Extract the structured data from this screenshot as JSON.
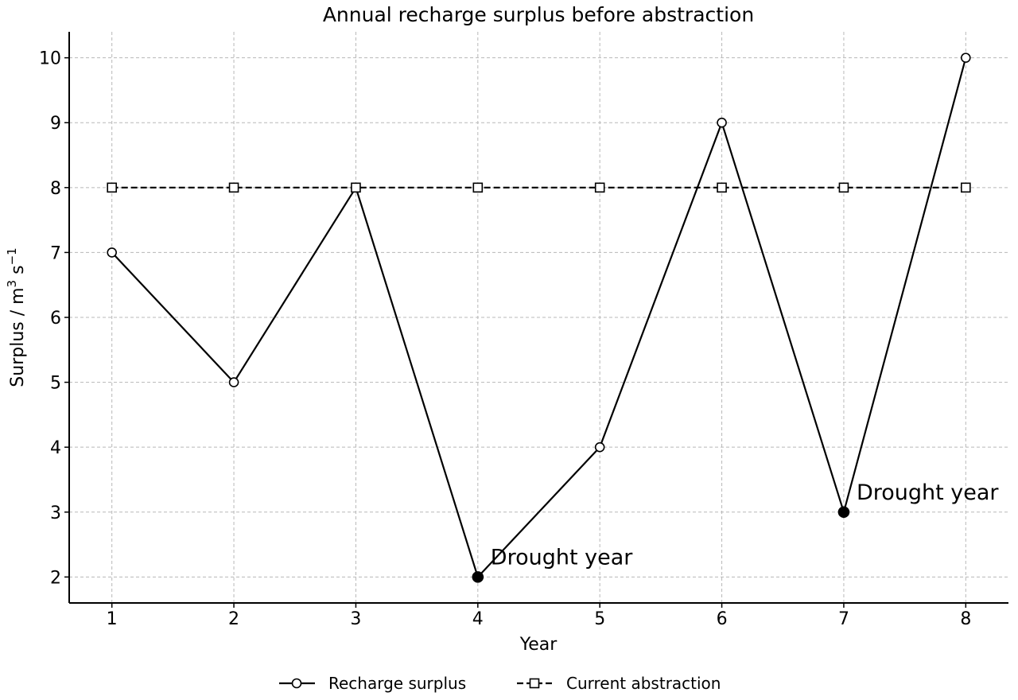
{
  "chart_data": {
    "type": "line",
    "title": "Annual recharge surplus before abstraction",
    "xlabel": "Year",
    "ylabel": "Surplus / m³ s⁻¹",
    "x": [
      1,
      2,
      3,
      4,
      5,
      6,
      7,
      8
    ],
    "xlim": [
      0.65,
      8.35
    ],
    "ylim": [
      1.6,
      10.4
    ],
    "xticks": [
      1,
      2,
      3,
      4,
      5,
      6,
      7,
      8
    ],
    "yticks": [
      2,
      3,
      4,
      5,
      6,
      7,
      8,
      9,
      10
    ],
    "grid": true,
    "legend_position": "bottom-center",
    "series": [
      {
        "name": "Recharge surplus",
        "values": [
          7,
          5,
          8,
          2,
          4,
          9,
          3,
          10
        ],
        "marker": "circle",
        "line_style": "solid",
        "color": "#000000",
        "highlight_x": [
          4,
          7
        ]
      },
      {
        "name": "Current abstraction",
        "values": [
          8,
          8,
          8,
          8,
          8,
          8,
          8,
          8
        ],
        "marker": "square",
        "line_style": "dashed",
        "color": "#000000"
      }
    ],
    "annotations": [
      {
        "text": "Drought year",
        "x": 4,
        "y": 2
      },
      {
        "text": "Drought year",
        "x": 7,
        "y": 3
      }
    ]
  }
}
